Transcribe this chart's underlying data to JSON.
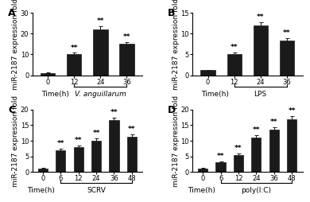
{
  "panels": [
    {
      "label": "A",
      "xlabel": "Time(h)",
      "ylabel": "miR-2187 expression fold",
      "x_ticks": [
        0,
        12,
        24,
        36
      ],
      "values": [
        1.1,
        10.2,
        22.0,
        15.0
      ],
      "errors": [
        0.15,
        0.6,
        1.5,
        0.9
      ],
      "ylim": [
        0,
        30
      ],
      "yticks": [
        0,
        10,
        20,
        30
      ],
      "bracket_label": "V. anguillarum",
      "bracket_label_italic": true,
      "bracket_start": 1,
      "bracket_end": 3,
      "sig": [
        "",
        "**",
        "**",
        "**"
      ]
    },
    {
      "label": "B",
      "xlabel": "Time(h)",
      "ylabel": "miR-2187 expression fold",
      "x_ticks": [
        0,
        12,
        24,
        36
      ],
      "values": [
        1.2,
        5.1,
        12.0,
        8.3
      ],
      "errors": [
        0.1,
        0.4,
        0.7,
        0.6
      ],
      "ylim": [
        0,
        15
      ],
      "yticks": [
        0,
        5,
        10,
        15
      ],
      "bracket_label": "LPS",
      "bracket_label_italic": false,
      "bracket_start": 1,
      "bracket_end": 3,
      "sig": [
        "",
        "**",
        "**",
        "**"
      ]
    },
    {
      "label": "C",
      "xlabel": "Time(h)",
      "ylabel": "miR-2187 expression fold",
      "x_ticks": [
        0,
        6,
        12,
        24,
        36,
        48
      ],
      "values": [
        1.1,
        7.0,
        7.9,
        9.9,
        16.5,
        11.2
      ],
      "errors": [
        0.1,
        0.4,
        0.5,
        0.9,
        0.8,
        0.9
      ],
      "ylim": [
        0,
        20
      ],
      "yticks": [
        0,
        5,
        10,
        15,
        20
      ],
      "bracket_label": "SCRV",
      "bracket_label_italic": false,
      "bracket_start": 1,
      "bracket_end": 5,
      "sig": [
        "",
        "**",
        "**",
        "**",
        "**",
        "**"
      ]
    },
    {
      "label": "D",
      "xlabel": "Time(h)",
      "ylabel": "miR-2187 expression fold",
      "x_ticks": [
        0,
        6,
        12,
        24,
        36,
        48
      ],
      "values": [
        1.1,
        3.0,
        5.5,
        11.0,
        13.5,
        17.0
      ],
      "errors": [
        0.1,
        0.3,
        0.5,
        0.7,
        0.8,
        1.0
      ],
      "ylim": [
        0,
        20
      ],
      "yticks": [
        0,
        5,
        10,
        15,
        20
      ],
      "bracket_label": "poly(I:C)",
      "bracket_label_italic": false,
      "bracket_start": 1,
      "bracket_end": 5,
      "sig": [
        "",
        "**",
        "**",
        "**",
        "**",
        "**"
      ]
    }
  ],
  "bar_color": "#1a1a1a",
  "bar_edge_color": "#1a1a1a",
  "error_color": "#1a1a1a",
  "background_color": "#ffffff",
  "label_fontsize": 6.5,
  "tick_fontsize": 6.0,
  "sig_fontsize": 6.5,
  "panel_label_fontsize": 9,
  "bar_width": 0.55
}
